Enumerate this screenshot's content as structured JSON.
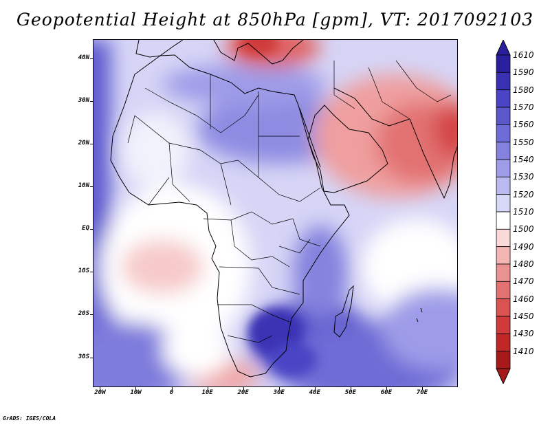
{
  "title": "Geopotential Height at 850hPa [gpm], VT: 2017092103",
  "footer": "GrADS: IGES/COLA",
  "y_axis": [
    {
      "label": "40N",
      "value": 40
    },
    {
      "label": "30N",
      "value": 30
    },
    {
      "label": "20N",
      "value": 20
    },
    {
      "label": "10N",
      "value": 10
    },
    {
      "label": "EQ",
      "value": 0
    },
    {
      "label": "10S",
      "value": -10
    },
    {
      "label": "20S",
      "value": -20
    },
    {
      "label": "30S",
      "value": -30
    }
  ],
  "x_axis": [
    {
      "label": "20W",
      "value": -20
    },
    {
      "label": "10W",
      "value": -10
    },
    {
      "label": "0",
      "value": 0
    },
    {
      "label": "10E",
      "value": 10
    },
    {
      "label": "20E",
      "value": 20
    },
    {
      "label": "30E",
      "value": 30
    },
    {
      "label": "40E",
      "value": 40
    },
    {
      "label": "50E",
      "value": 50
    },
    {
      "label": "60E",
      "value": 60
    },
    {
      "label": "70E",
      "value": 70
    }
  ],
  "lon_range": [
    -22,
    80
  ],
  "lat_range": [
    -37,
    44.5
  ],
  "colorbar": [
    {
      "label": "1610",
      "color": "#2a1f9c"
    },
    {
      "label": "1590",
      "color": "#3a30b4"
    },
    {
      "label": "1580",
      "color": "#4a44c4"
    },
    {
      "label": "1570",
      "color": "#5c58cc"
    },
    {
      "label": "1560",
      "color": "#6e6cd6"
    },
    {
      "label": "1550",
      "color": "#8482de"
    },
    {
      "label": "1540",
      "color": "#9e9ce8"
    },
    {
      "label": "1530",
      "color": "#bab9f0"
    },
    {
      "label": "1520",
      "color": "#d8d8f8"
    },
    {
      "label": "1510",
      "color": "#ffffff"
    },
    {
      "label": "1500",
      "color": "#fbd9d9"
    },
    {
      "label": "1490",
      "color": "#f4b5b5"
    },
    {
      "label": "1480",
      "color": "#eb9393"
    },
    {
      "label": "1470",
      "color": "#e27272"
    },
    {
      "label": "1460",
      "color": "#da5252"
    },
    {
      "label": "1450",
      "color": "#d03a3a"
    },
    {
      "label": "1430",
      "color": "#c02828"
    },
    {
      "label": "1410",
      "color": "#a81a1a"
    }
  ]
}
